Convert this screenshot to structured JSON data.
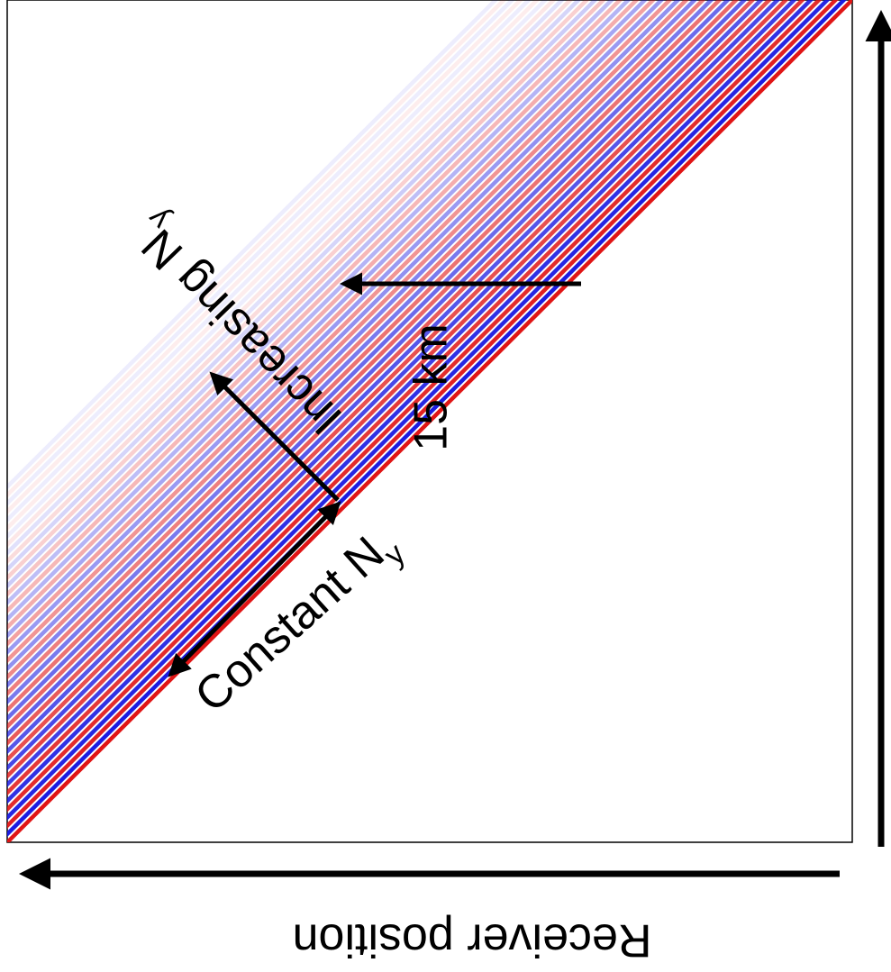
{
  "annotations": {
    "distance": "15 km",
    "increasing": "Increasing N",
    "increasing_sub": "y",
    "constant": "Constant N",
    "constant_sub": "y"
  },
  "axis_label": "Receiver position"
}
